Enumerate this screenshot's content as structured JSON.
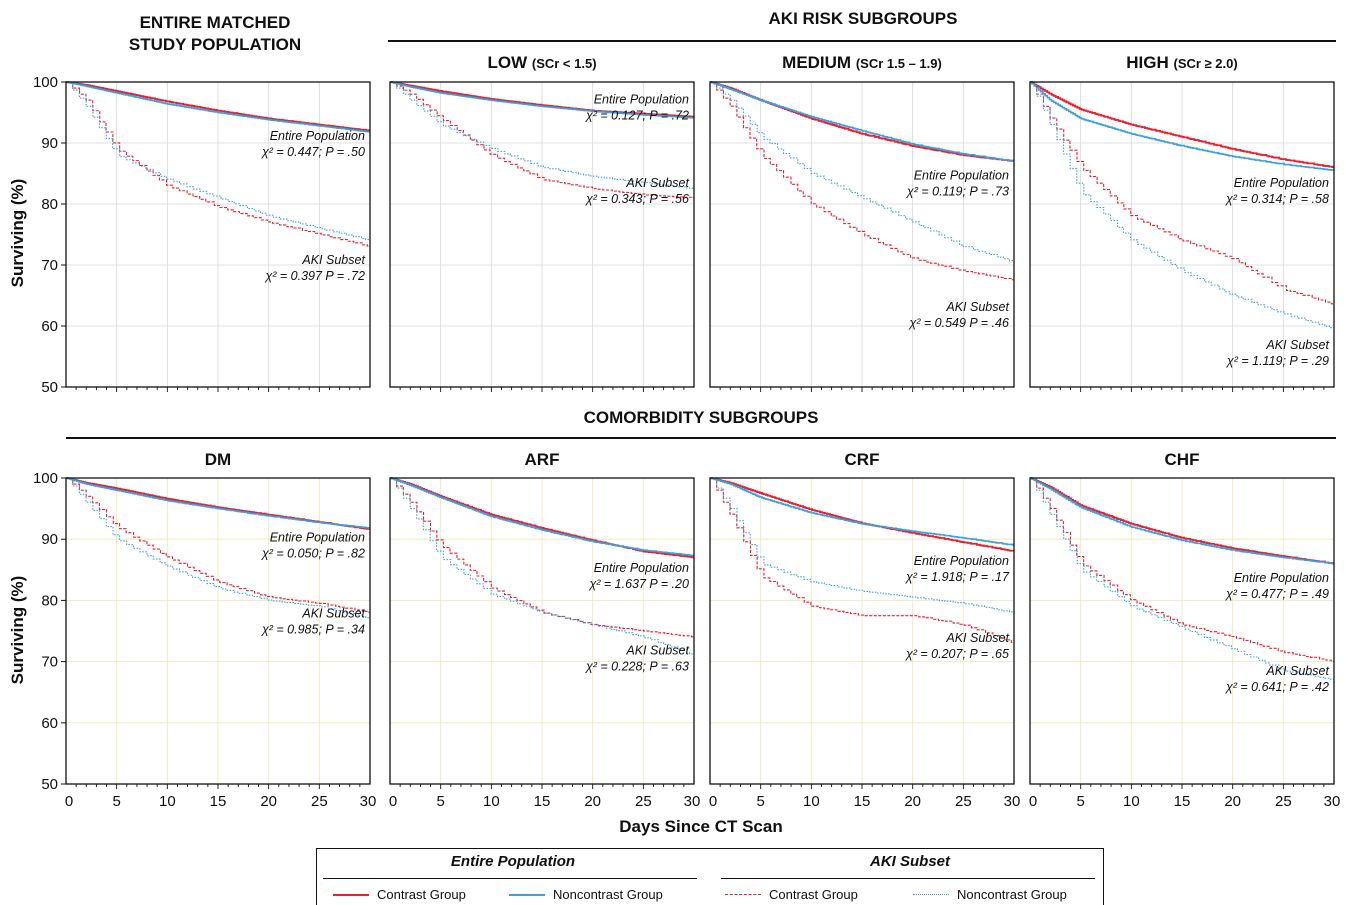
{
  "headers": {
    "entire_line1": "ENTIRE MATCHED",
    "entire_line2": "STUDY POPULATION",
    "aki_risk": "AKI RISK SUBGROUPS",
    "comorbidity": "COMORBIDITY SUBGROUPS"
  },
  "panel_titles": {
    "low": {
      "main": "LOW",
      "sub": "(SCr < 1.5)"
    },
    "medium": {
      "main": "MEDIUM",
      "sub": "(SCr 1.5 – 1.9)"
    },
    "high": {
      "main": "HIGH",
      "sub": "(SCr ≥ 2.0)"
    },
    "dm": "DM",
    "arf": "ARF",
    "crf": "CRF",
    "chf": "CHF"
  },
  "axes": {
    "ylabel": "Surviving (%)",
    "xlabel": "Days Since CT Scan",
    "yticks": [
      "100",
      "90",
      "80",
      "70",
      "60",
      "50"
    ],
    "xticks": [
      "0",
      "5",
      "10",
      "15",
      "20",
      "25",
      "30"
    ]
  },
  "legend": {
    "entire_header": "Entire Population",
    "aki_header": "AKI Subset",
    "items": [
      "Contrast Group",
      "Noncontrast Group",
      "Contrast Group",
      "Noncontrast Group"
    ]
  },
  "colors": {
    "contrast": "#e8202f",
    "noncontrast": "#3aa0de",
    "grid": "#c8c8c8",
    "grid_bottom": "#e8e0a8"
  },
  "chart_data": [
    {
      "id": "entire",
      "type": "line",
      "title": "ENTIRE MATCHED STUDY POPULATION",
      "xlim": [
        0,
        30
      ],
      "ylim": [
        50,
        100
      ],
      "x": [
        0,
        2,
        5,
        10,
        15,
        20,
        25,
        30
      ],
      "series": [
        {
          "name": "Entire Population – Contrast Group",
          "values": [
            100,
            99.5,
            98.5,
            96.8,
            95.3,
            94,
            93,
            92
          ]
        },
        {
          "name": "Entire Population – Noncontrast Group",
          "values": [
            100,
            99.3,
            98.2,
            96.4,
            95,
            93.8,
            92.8,
            91.8
          ]
        },
        {
          "name": "AKI Subset – Contrast Group",
          "values": [
            100,
            97,
            89,
            83,
            79.5,
            77,
            75,
            73
          ]
        },
        {
          "name": "AKI Subset – Noncontrast Group",
          "values": [
            100,
            96,
            88,
            84,
            81,
            78,
            76,
            74
          ]
        }
      ],
      "annotations": [
        {
          "label": "Entire Population",
          "stat": "χ² = 0.447; P = .50"
        },
        {
          "label": "AKI Subset",
          "stat": "χ² = 0.397 P = .72"
        }
      ]
    },
    {
      "id": "low",
      "type": "line",
      "title": "LOW (SCr < 1.5)",
      "xlim": [
        0,
        30
      ],
      "ylim": [
        50,
        100
      ],
      "x": [
        0,
        2,
        5,
        10,
        15,
        20,
        25,
        30
      ],
      "series": [
        {
          "name": "Entire Population – Contrast Group",
          "values": [
            100,
            99.4,
            98.5,
            97.2,
            96.2,
            95.3,
            94.8,
            94.3
          ]
        },
        {
          "name": "Entire Population – Noncontrast Group",
          "values": [
            100,
            99.2,
            98.2,
            97,
            96,
            95.2,
            94.6,
            94.1
          ]
        },
        {
          "name": "AKI Subset – Contrast Group",
          "values": [
            100,
            98,
            94,
            88,
            84,
            82.5,
            81.5,
            81
          ]
        },
        {
          "name": "AKI Subset – Noncontrast Group",
          "values": [
            100,
            97,
            93,
            89,
            86,
            84.5,
            83.5,
            82.5
          ]
        }
      ],
      "annotations": [
        {
          "label": "Entire Population",
          "stat": "χ² = 0.127; P = .72"
        },
        {
          "label": "AKI Subset",
          "stat": "χ² = 0.343; P = .56"
        }
      ]
    },
    {
      "id": "medium",
      "type": "line",
      "title": "MEDIUM (SCr 1.5 – 1.9)",
      "xlim": [
        0,
        30
      ],
      "ylim": [
        50,
        100
      ],
      "x": [
        0,
        2,
        5,
        10,
        15,
        20,
        25,
        30
      ],
      "series": [
        {
          "name": "Entire Population – Contrast Group",
          "values": [
            100,
            99,
            97,
            94,
            91.5,
            89.5,
            88,
            87
          ]
        },
        {
          "name": "Entire Population – Noncontrast Group",
          "values": [
            100,
            98.8,
            97,
            94.3,
            92,
            89.8,
            88.2,
            87
          ]
        },
        {
          "name": "AKI Subset – Contrast Group",
          "values": [
            100,
            96,
            88,
            80,
            75,
            71,
            69,
            67.5
          ]
        },
        {
          "name": "AKI Subset – Noncontrast Group",
          "values": [
            100,
            97,
            91,
            85,
            81,
            77,
            73,
            70.5
          ]
        }
      ],
      "annotations": [
        {
          "label": "Entire Population",
          "stat": "χ² = 0.119; P = .73"
        },
        {
          "label": "AKI Subset",
          "stat": "χ² = 0.549 P = .46"
        }
      ]
    },
    {
      "id": "high",
      "type": "line",
      "title": "HIGH (SCr ≥ 2.0)",
      "xlim": [
        0,
        30
      ],
      "ylim": [
        50,
        100
      ],
      "x": [
        0,
        2,
        5,
        10,
        15,
        20,
        25,
        30
      ],
      "series": [
        {
          "name": "Entire Population – Contrast Group",
          "values": [
            100,
            98,
            95.5,
            93,
            91,
            89,
            87.3,
            86
          ]
        },
        {
          "name": "Entire Population – Noncontrast Group",
          "values": [
            100,
            97,
            94,
            91.5,
            89.5,
            87.8,
            86.5,
            85.5
          ]
        },
        {
          "name": "AKI Subset – Contrast Group",
          "values": [
            100,
            94,
            86,
            78,
            74,
            71,
            66,
            63.5
          ]
        },
        {
          "name": "AKI Subset – Noncontrast Group",
          "values": [
            100,
            93,
            82,
            74,
            69,
            65,
            62,
            59.5
          ]
        }
      ],
      "annotations": [
        {
          "label": "Entire Population",
          "stat": "χ² = 0.314; P = .58"
        },
        {
          "label": "AKI Subset",
          "stat": "χ² = 1.119; P = .29"
        }
      ]
    },
    {
      "id": "dm",
      "type": "line",
      "title": "DM",
      "xlim": [
        0,
        30
      ],
      "ylim": [
        50,
        100
      ],
      "x": [
        0,
        2,
        5,
        10,
        15,
        20,
        25,
        30
      ],
      "series": [
        {
          "name": "Entire Population – Contrast Group",
          "values": [
            100,
            99.2,
            98.3,
            96.6,
            95.2,
            94,
            92.8,
            91.6
          ]
        },
        {
          "name": "Entire Population – Noncontrast Group",
          "values": [
            100,
            99,
            98,
            96.3,
            95,
            93.8,
            92.7,
            91.8
          ]
        },
        {
          "name": "AKI Subset – Contrast Group",
          "values": [
            100,
            97,
            92,
            87,
            83,
            80.5,
            79.5,
            78
          ]
        },
        {
          "name": "AKI Subset – Noncontrast Group",
          "values": [
            100,
            96,
            90,
            85.5,
            82,
            80,
            79,
            77
          ]
        }
      ],
      "annotations": [
        {
          "label": "Entire Population",
          "stat": "χ² = 0.050; P = .82"
        },
        {
          "label": "AKI Subset",
          "stat": "χ² = 0.985; P = .34"
        }
      ]
    },
    {
      "id": "arf",
      "type": "line",
      "title": "ARF",
      "xlim": [
        0,
        30
      ],
      "ylim": [
        50,
        100
      ],
      "x": [
        0,
        2,
        5,
        10,
        15,
        20,
        25,
        30
      ],
      "series": [
        {
          "name": "Entire Population – Contrast Group",
          "values": [
            100,
            99,
            97,
            94,
            91.8,
            89.8,
            88,
            87
          ]
        },
        {
          "name": "Entire Population – Noncontrast Group",
          "values": [
            100,
            98.8,
            96.8,
            93.7,
            91.5,
            89.6,
            88.2,
            87.3
          ]
        },
        {
          "name": "AKI Subset – Contrast Group",
          "values": [
            100,
            96,
            89,
            82,
            78,
            76,
            75,
            74
          ]
        },
        {
          "name": "AKI Subset – Noncontrast Group",
          "values": [
            100,
            95,
            87,
            81,
            78,
            76,
            74,
            71
          ]
        }
      ],
      "annotations": [
        {
          "label": "Entire Population",
          "stat": "χ² = 1.637 P = .20"
        },
        {
          "label": "AKI Subset",
          "stat": "χ² = 0.228; P = .63"
        }
      ]
    },
    {
      "id": "crf",
      "type": "line",
      "title": "CRF",
      "xlim": [
        0,
        30
      ],
      "ylim": [
        50,
        100
      ],
      "x": [
        0,
        2,
        5,
        10,
        15,
        20,
        25,
        30
      ],
      "series": [
        {
          "name": "Entire Population – Contrast Group",
          "values": [
            100,
            99.2,
            97.5,
            94.8,
            92.6,
            91,
            89.5,
            88
          ]
        },
        {
          "name": "Entire Population – Noncontrast Group",
          "values": [
            100,
            99,
            96.8,
            94.3,
            92.5,
            91.3,
            90.2,
            89
          ]
        },
        {
          "name": "AKI Subset – Contrast Group",
          "values": [
            100,
            94,
            84,
            79,
            77.5,
            77.5,
            76,
            73
          ]
        },
        {
          "name": "AKI Subset – Noncontrast Group",
          "values": [
            100,
            95,
            86,
            83,
            81.5,
            80.5,
            79.5,
            78
          ]
        }
      ],
      "annotations": [
        {
          "label": "Entire Population",
          "stat": "χ² = 1.918; P = .17"
        },
        {
          "label": "AKI Subset",
          "stat": "χ² = 0.207; P = .65"
        }
      ]
    },
    {
      "id": "chf",
      "type": "line",
      "title": "CHF",
      "xlim": [
        0,
        30
      ],
      "ylim": [
        50,
        100
      ],
      "x": [
        0,
        2,
        5,
        10,
        15,
        20,
        25,
        30
      ],
      "series": [
        {
          "name": "Entire Population – Contrast Group",
          "values": [
            100,
            98.5,
            95.5,
            92.5,
            90.2,
            88.5,
            87.2,
            86
          ]
        },
        {
          "name": "Entire Population – Noncontrast Group",
          "values": [
            100,
            98.2,
            95.2,
            92,
            89.8,
            88.2,
            87,
            86
          ]
        },
        {
          "name": "AKI Subset – Contrast Group",
          "values": [
            100,
            95,
            86,
            80,
            76,
            74,
            71.5,
            70
          ]
        },
        {
          "name": "AKI Subset – Noncontrast Group",
          "values": [
            100,
            94,
            85,
            79,
            75.5,
            72,
            68.5,
            67
          ]
        }
      ],
      "annotations": [
        {
          "label": "Entire Population",
          "stat": "χ² = 0.477; P = .49"
        },
        {
          "label": "AKI Subset",
          "stat": "χ² = 0.641; P = .42"
        }
      ]
    }
  ]
}
